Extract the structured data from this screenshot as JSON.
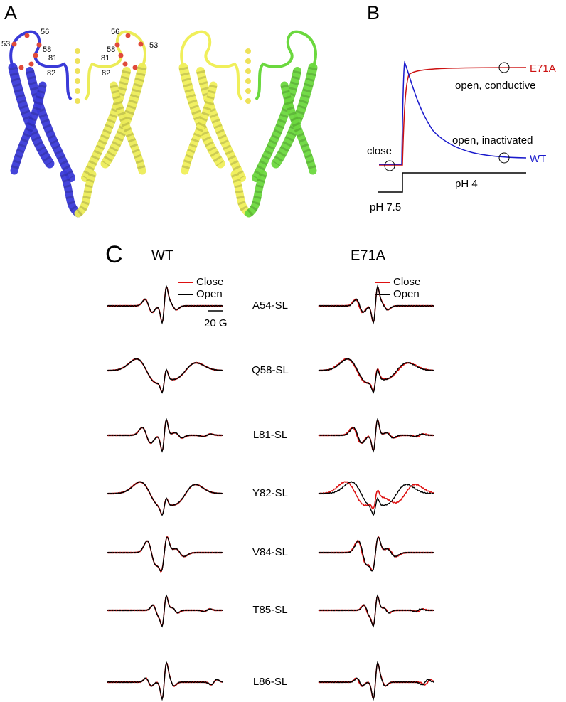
{
  "panel_a": {
    "label": "A",
    "residue_labels_left": [
      "53",
      "56",
      "58",
      "81",
      "82"
    ],
    "residue_labels_right": [
      "56",
      "53",
      "58",
      "81",
      "82"
    ]
  },
  "panel_b": {
    "label": "B",
    "mutant": "E71A",
    "conductive_state": "open, conductive",
    "inactivated_state": "open, inactivated",
    "closed_state": "close",
    "wild_type": "WT",
    "low_ph": "pH 4",
    "high_ph": "pH 7.5"
  },
  "panel_c": {
    "label": "C",
    "column_titles": [
      "WT",
      "E71A"
    ],
    "legend": [
      "Close",
      "Open"
    ],
    "scale_bar": "20 G",
    "rows": [
      "A54-SL",
      "Q58-SL",
      "L81-SL",
      "Y82-SL",
      "V84-SL",
      "T85-SL",
      "L86-SL"
    ]
  }
}
